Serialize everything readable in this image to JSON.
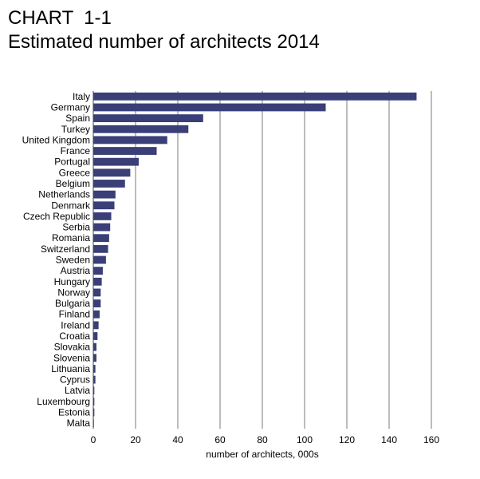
{
  "header": {
    "label": "CHART  1-1",
    "title": "Estimated number of architects 2014"
  },
  "chart_data": {
    "type": "bar",
    "orientation": "horizontal",
    "categories": [
      "Italy",
      "Germany",
      "Spain",
      "Turkey",
      "United Kingdom",
      "France",
      "Portugal",
      "Greece",
      "Belgium",
      "Netherlands",
      "Denmark",
      "Czech Republic",
      "Serbia",
      "Romania",
      "Switzerland",
      "Sweden",
      "Austria",
      "Hungary",
      "Norway",
      "Bulgaria",
      "Finland",
      "Ireland",
      "Croatia",
      "Slovakia",
      "Slovenia",
      "Lithuania",
      "Cyprus",
      "Latvia",
      "Luxembourg",
      "Estonia",
      "Malta"
    ],
    "values": [
      153,
      110,
      52,
      45,
      35,
      30,
      21.5,
      17.5,
      15,
      10.5,
      10,
      8.5,
      8,
      7.5,
      7,
      6,
      4.5,
      4,
      3.5,
      3.5,
      3,
      2.5,
      2,
      1.5,
      1.5,
      1,
      1,
      0.5,
      0.5,
      0.5,
      0.3
    ],
    "title": "Estimated number of architects 2014",
    "xlabel": "number of architects, 000s",
    "ylabel": "",
    "xlim": [
      0,
      160
    ],
    "xticks": [
      0,
      20,
      40,
      60,
      80,
      100,
      120,
      140,
      160
    ],
    "grid": "vertical",
    "bar_color": "#3a3f78"
  }
}
